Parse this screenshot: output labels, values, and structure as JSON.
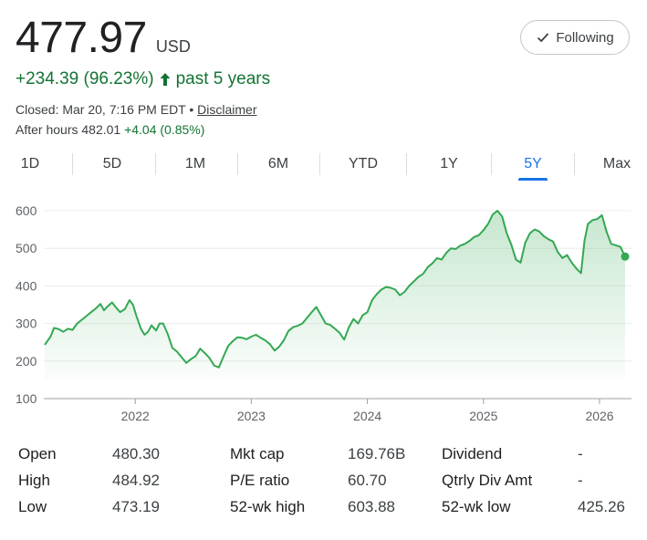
{
  "quote": {
    "price": "477.97",
    "currency": "USD",
    "change": "+234.39 (96.23%)",
    "change_period": "past 5 years",
    "closed_text": "Closed: Mar 20, 7:16 PM EDT •",
    "disclaimer_label": "Disclaimer",
    "after_hours_label": "After hours 482.01",
    "after_hours_change": "+4.04 (0.85%)",
    "up_color": "#137333"
  },
  "follow_button": {
    "label": "Following",
    "icon": "checkmark-icon"
  },
  "tabs": [
    {
      "label": "1D"
    },
    {
      "label": "5D"
    },
    {
      "label": "1M"
    },
    {
      "label": "6M"
    },
    {
      "label": "YTD"
    },
    {
      "label": "1Y"
    },
    {
      "label": "5Y"
    },
    {
      "label": "Max"
    }
  ],
  "active_tab": "5Y",
  "chart_data": {
    "type": "area",
    "line_color": "#34a853",
    "y_ticks": [
      "600",
      "500",
      "400",
      "300",
      "200",
      "100"
    ],
    "x_ticks": [
      "2022",
      "2023",
      "2024",
      "2025",
      "2026"
    ],
    "ylim": [
      100,
      620
    ],
    "xlim": [
      2021.22,
      2026.22
    ],
    "grid": true,
    "series": [
      {
        "points": [
          [
            2021.22,
            243
          ],
          [
            2021.27,
            265
          ],
          [
            2021.3,
            288
          ],
          [
            2021.34,
            285
          ],
          [
            2021.38,
            278
          ],
          [
            2021.42,
            286
          ],
          [
            2021.46,
            283
          ],
          [
            2021.5,
            300
          ],
          [
            2021.54,
            310
          ],
          [
            2021.58,
            320
          ],
          [
            2021.62,
            330
          ],
          [
            2021.66,
            340
          ],
          [
            2021.7,
            352
          ],
          [
            2021.73,
            335
          ],
          [
            2021.76,
            345
          ],
          [
            2021.8,
            356
          ],
          [
            2021.84,
            340
          ],
          [
            2021.87,
            330
          ],
          [
            2021.91,
            338
          ],
          [
            2021.95,
            362
          ],
          [
            2021.98,
            350
          ],
          [
            2022.01,
            320
          ],
          [
            2022.05,
            285
          ],
          [
            2022.08,
            270
          ],
          [
            2022.11,
            278
          ],
          [
            2022.14,
            295
          ],
          [
            2022.18,
            281
          ],
          [
            2022.21,
            300
          ],
          [
            2022.24,
            300
          ],
          [
            2022.28,
            272
          ],
          [
            2022.32,
            235
          ],
          [
            2022.36,
            225
          ],
          [
            2022.4,
            210
          ],
          [
            2022.44,
            195
          ],
          [
            2022.48,
            205
          ],
          [
            2022.52,
            213
          ],
          [
            2022.56,
            233
          ],
          [
            2022.6,
            221
          ],
          [
            2022.64,
            208
          ],
          [
            2022.68,
            188
          ],
          [
            2022.72,
            183
          ],
          [
            2022.76,
            212
          ],
          [
            2022.8,
            240
          ],
          [
            2022.84,
            253
          ],
          [
            2022.88,
            263
          ],
          [
            2022.92,
            262
          ],
          [
            2022.96,
            258
          ],
          [
            2023.0,
            265
          ],
          [
            2023.04,
            270
          ],
          [
            2023.08,
            262
          ],
          [
            2023.12,
            255
          ],
          [
            2023.16,
            245
          ],
          [
            2023.2,
            228
          ],
          [
            2023.24,
            238
          ],
          [
            2023.28,
            255
          ],
          [
            2023.32,
            280
          ],
          [
            2023.36,
            290
          ],
          [
            2023.4,
            294
          ],
          [
            2023.44,
            300
          ],
          [
            2023.48,
            315
          ],
          [
            2023.52,
            330
          ],
          [
            2023.56,
            344
          ],
          [
            2023.6,
            322
          ],
          [
            2023.64,
            300
          ],
          [
            2023.68,
            296
          ],
          [
            2023.72,
            286
          ],
          [
            2023.76,
            275
          ],
          [
            2023.8,
            257
          ],
          [
            2023.84,
            290
          ],
          [
            2023.88,
            312
          ],
          [
            2023.92,
            300
          ],
          [
            2023.96,
            322
          ],
          [
            2024.0,
            330
          ],
          [
            2024.04,
            362
          ],
          [
            2024.08,
            378
          ],
          [
            2024.12,
            390
          ],
          [
            2024.16,
            397
          ],
          [
            2024.2,
            395
          ],
          [
            2024.24,
            390
          ],
          [
            2024.28,
            375
          ],
          [
            2024.32,
            384
          ],
          [
            2024.36,
            400
          ],
          [
            2024.4,
            412
          ],
          [
            2024.44,
            424
          ],
          [
            2024.48,
            432
          ],
          [
            2024.52,
            450
          ],
          [
            2024.56,
            460
          ],
          [
            2024.6,
            474
          ],
          [
            2024.64,
            470
          ],
          [
            2024.68,
            488
          ],
          [
            2024.72,
            500
          ],
          [
            2024.76,
            498
          ],
          [
            2024.8,
            507
          ],
          [
            2024.84,
            512
          ],
          [
            2024.88,
            520
          ],
          [
            2024.92,
            530
          ],
          [
            2024.96,
            535
          ],
          [
            2025.0,
            548
          ],
          [
            2025.04,
            565
          ],
          [
            2025.08,
            590
          ],
          [
            2025.12,
            600
          ],
          [
            2025.16,
            585
          ],
          [
            2025.2,
            540
          ],
          [
            2025.24,
            510
          ],
          [
            2025.28,
            470
          ],
          [
            2025.32,
            462
          ],
          [
            2025.36,
            515
          ],
          [
            2025.4,
            540
          ],
          [
            2025.44,
            550
          ],
          [
            2025.48,
            545
          ],
          [
            2025.52,
            532
          ],
          [
            2025.56,
            524
          ],
          [
            2025.6,
            518
          ],
          [
            2025.64,
            490
          ],
          [
            2025.68,
            474
          ],
          [
            2025.72,
            482
          ],
          [
            2025.76,
            462
          ],
          [
            2025.8,
            446
          ],
          [
            2025.84,
            434
          ],
          [
            2025.87,
            520
          ],
          [
            2025.9,
            565
          ],
          [
            2025.94,
            575
          ],
          [
            2025.98,
            578
          ],
          [
            2026.02,
            588
          ],
          [
            2026.06,
            545
          ],
          [
            2026.1,
            512
          ],
          [
            2026.14,
            508
          ],
          [
            2026.18,
            504
          ],
          [
            2026.22,
            478
          ]
        ]
      }
    ]
  },
  "stats": [
    {
      "label": "Open",
      "value": "480.30"
    },
    {
      "label": "High",
      "value": "484.92"
    },
    {
      "label": "Low",
      "value": "473.19"
    },
    {
      "label": "Mkt cap",
      "value": "169.76B"
    },
    {
      "label": "P/E ratio",
      "value": "60.70"
    },
    {
      "label": "52-wk high",
      "value": "603.88"
    },
    {
      "label": "Dividend",
      "value": "-"
    },
    {
      "label": "Qtrly Div Amt",
      "value": "-"
    },
    {
      "label": "52-wk low",
      "value": "425.26"
    }
  ]
}
